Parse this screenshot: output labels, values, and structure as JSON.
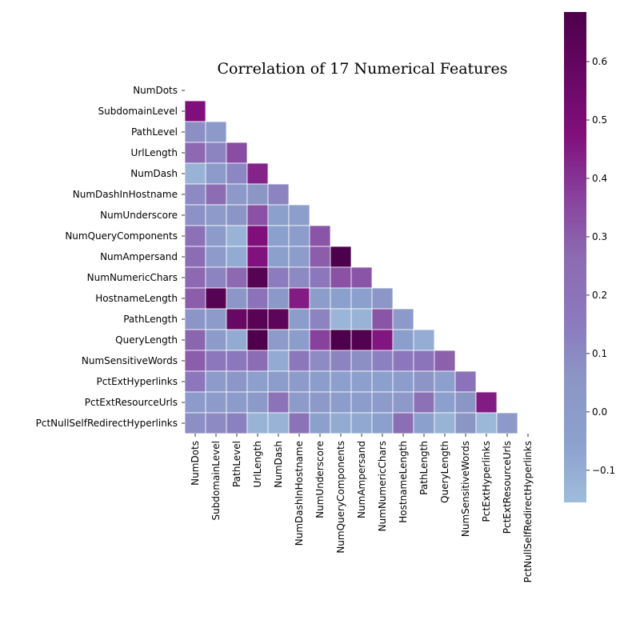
{
  "chart_data": {
    "type": "heatmap",
    "title": "Correlation of 17 Numerical Features",
    "xlabel": "",
    "ylabel": "",
    "mask": "upper-triangle-and-diagonal",
    "features": [
      "NumDots",
      "SubdomainLevel",
      "PathLevel",
      "UrlLength",
      "NumDash",
      "NumDashInHostname",
      "NumUnderscore",
      "NumQueryComponents",
      "NumAmpersand",
      "NumNumericChars",
      "HostnameLength",
      "PathLength",
      "QueryLength",
      "NumSensitiveWords",
      "PctExtHyperlinks",
      "PctExtResourceUrls",
      "PctNullSelfRedirectHyperlinks"
    ],
    "values": [
      [],
      [
        0.48
      ],
      [
        0.08,
        0.02
      ],
      [
        0.27,
        0.12,
        0.34
      ],
      [
        -0.12,
        0.0,
        0.11,
        0.43
      ],
      [
        0.1,
        0.25,
        0.02,
        0.05,
        0.12
      ],
      [
        0.07,
        0.0,
        0.05,
        0.33,
        -0.05,
        -0.03
      ],
      [
        0.22,
        0.0,
        -0.12,
        0.48,
        -0.05,
        -0.02,
        0.32
      ],
      [
        0.25,
        0.0,
        -0.09,
        0.47,
        -0.05,
        -0.02,
        0.3,
        0.69
      ],
      [
        0.27,
        0.12,
        0.27,
        0.65,
        0.15,
        0.1,
        0.18,
        0.33,
        0.32
      ],
      [
        0.3,
        0.65,
        0.04,
        0.2,
        0.03,
        0.45,
        -0.02,
        -0.05,
        -0.05,
        0.04
      ],
      [
        0.05,
        0.0,
        0.58,
        0.64,
        0.62,
        -0.02,
        0.12,
        -0.13,
        -0.12,
        0.32,
        0.02
      ],
      [
        0.28,
        0.0,
        -0.09,
        0.68,
        0.0,
        -0.02,
        0.37,
        0.68,
        0.66,
        0.46,
        -0.03,
        -0.1
      ],
      [
        0.3,
        0.17,
        0.17,
        0.26,
        -0.09,
        0.18,
        0.09,
        0.12,
        0.08,
        0.13,
        0.17,
        0.19,
        0.29
      ],
      [
        0.18,
        0.0,
        0.04,
        -0.04,
        -0.02,
        0.0,
        -0.02,
        -0.04,
        -0.04,
        -0.05,
        -0.02,
        0.06,
        -0.04,
        0.2
      ],
      [
        0.0,
        0.0,
        0.0,
        0.01,
        0.2,
        0.0,
        0.02,
        -0.01,
        -0.01,
        0.0,
        0.02,
        0.22,
        -0.05,
        0.05,
        0.45
      ],
      [
        0.08,
        0.1,
        0.13,
        -0.12,
        -0.12,
        0.2,
        -0.05,
        -0.09,
        -0.08,
        -0.05,
        0.24,
        -0.05,
        -0.12,
        0.05,
        -0.14,
        0.02
      ]
    ],
    "colorbar": {
      "colormap": "BuPu",
      "vmin": -0.155,
      "vmax": 0.685,
      "ticks": [
        -0.1,
        0.0,
        0.1,
        0.2,
        0.3,
        0.4,
        0.5,
        0.6
      ],
      "tick_labels": [
        "−0.1",
        "0.0",
        "0.1",
        "0.2",
        "0.3",
        "0.4",
        "0.5",
        "0.6"
      ]
    }
  }
}
